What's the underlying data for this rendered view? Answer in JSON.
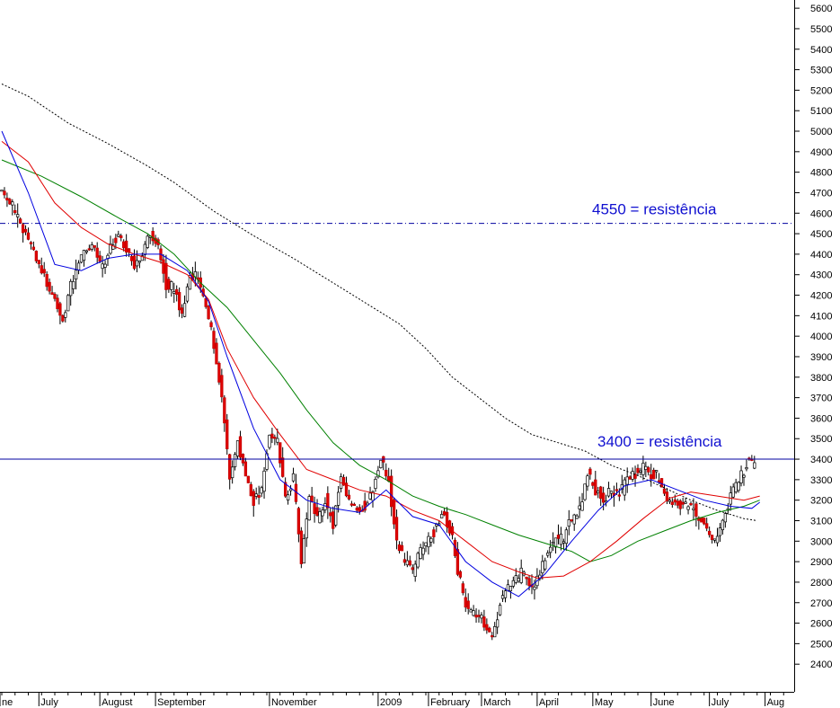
{
  "chart_data": {
    "type": "candlestick",
    "title": "",
    "xlabel": "",
    "ylabel": "",
    "ylim": [
      2265,
      5640
    ],
    "xlim": [
      0,
      299
    ],
    "y_ticks": [
      2400,
      2500,
      2600,
      2700,
      2800,
      2900,
      3000,
      3100,
      3200,
      3300,
      3400,
      3500,
      3600,
      3700,
      3800,
      3900,
      4000,
      4100,
      4200,
      4300,
      4400,
      4500,
      4600,
      4700,
      4800,
      4900,
      5000,
      5100,
      5200,
      5300,
      5400,
      5500,
      5600
    ],
    "month_labels": [
      {
        "label": "ne",
        "x": 0
      },
      {
        "label": "July",
        "x": 14
      },
      {
        "label": "August",
        "x": 37
      },
      {
        "label": "September",
        "x": 58
      },
      {
        "label": "November",
        "x": 101
      },
      {
        "label": "2009",
        "x": 142
      },
      {
        "label": "February",
        "x": 161
      },
      {
        "label": "March",
        "x": 181
      },
      {
        "label": "April",
        "x": 202
      },
      {
        "label": "May",
        "x": 223
      },
      {
        "label": "June",
        "x": 245
      },
      {
        "label": "July",
        "x": 267
      },
      {
        "label": "Aug",
        "x": 288
      }
    ],
    "annotations": [
      {
        "text": "4550 = resistência",
        "value": 4550
      },
      {
        "text": "3400 = resistência",
        "value": 3400
      }
    ],
    "price_anchors": [
      [
        0,
        4700
      ],
      [
        3,
        4660
      ],
      [
        6,
        4560
      ],
      [
        10,
        4480
      ],
      [
        13,
        4380
      ],
      [
        17,
        4260
      ],
      [
        20,
        4180
      ],
      [
        23,
        4080
      ],
      [
        26,
        4240
      ],
      [
        29,
        4350
      ],
      [
        32,
        4440
      ],
      [
        35,
        4420
      ],
      [
        38,
        4330
      ],
      [
        41,
        4440
      ],
      [
        44,
        4490
      ],
      [
        47,
        4430
      ],
      [
        50,
        4350
      ],
      [
        53,
        4400
      ],
      [
        56,
        4510
      ],
      [
        59,
        4440
      ],
      [
        62,
        4260
      ],
      [
        65,
        4230
      ],
      [
        68,
        4110
      ],
      [
        71,
        4300
      ],
      [
        74,
        4300
      ],
      [
        77,
        4140
      ],
      [
        80,
        3960
      ],
      [
        83,
        3700
      ],
      [
        86,
        3300
      ],
      [
        89,
        3500
      ],
      [
        92,
        3320
      ],
      [
        95,
        3200
      ],
      [
        98,
        3250
      ],
      [
        101,
        3530
      ],
      [
        104,
        3490
      ],
      [
        107,
        3200
      ],
      [
        110,
        3300
      ],
      [
        113,
        2900
      ],
      [
        116,
        3200
      ],
      [
        119,
        3100
      ],
      [
        122,
        3200
      ],
      [
        125,
        3080
      ],
      [
        128,
        3320
      ],
      [
        131,
        3200
      ],
      [
        134,
        3150
      ],
      [
        137,
        3170
      ],
      [
        140,
        3250
      ],
      [
        143,
        3400
      ],
      [
        146,
        3300
      ],
      [
        149,
        3000
      ],
      [
        152,
        2900
      ],
      [
        155,
        2850
      ],
      [
        158,
        2950
      ],
      [
        161,
        3000
      ],
      [
        164,
        3080
      ],
      [
        167,
        3150
      ],
      [
        170,
        3000
      ],
      [
        173,
        2800
      ],
      [
        176,
        2650
      ],
      [
        179,
        2660
      ],
      [
        182,
        2600
      ],
      [
        185,
        2520
      ],
      [
        188,
        2700
      ],
      [
        191,
        2780
      ],
      [
        194,
        2820
      ],
      [
        197,
        2850
      ],
      [
        200,
        2750
      ],
      [
        203,
        2850
      ],
      [
        206,
        2950
      ],
      [
        209,
        3000
      ],
      [
        212,
        3020
      ],
      [
        215,
        3100
      ],
      [
        218,
        3170
      ],
      [
        221,
        3320
      ],
      [
        224,
        3250
      ],
      [
        227,
        3200
      ],
      [
        230,
        3250
      ],
      [
        233,
        3230
      ],
      [
        236,
        3300
      ],
      [
        239,
        3330
      ],
      [
        242,
        3360
      ],
      [
        245,
        3330
      ],
      [
        248,
        3300
      ],
      [
        251,
        3200
      ],
      [
        254,
        3180
      ],
      [
        257,
        3180
      ],
      [
        260,
        3180
      ],
      [
        263,
        3120
      ],
      [
        266,
        3050
      ],
      [
        269,
        3000
      ],
      [
        272,
        3100
      ],
      [
        275,
        3220
      ],
      [
        278,
        3300
      ],
      [
        281,
        3380
      ],
      [
        284,
        3360
      ]
    ],
    "ma_dotted": [
      [
        0,
        5230
      ],
      [
        10,
        5170
      ],
      [
        25,
        5040
      ],
      [
        40,
        4940
      ],
      [
        55,
        4830
      ],
      [
        65,
        4750
      ],
      [
        80,
        4610
      ],
      [
        95,
        4490
      ],
      [
        110,
        4380
      ],
      [
        125,
        4260
      ],
      [
        140,
        4140
      ],
      [
        150,
        4060
      ],
      [
        160,
        3940
      ],
      [
        170,
        3800
      ],
      [
        180,
        3700
      ],
      [
        190,
        3600
      ],
      [
        200,
        3520
      ],
      [
        210,
        3480
      ],
      [
        220,
        3440
      ],
      [
        230,
        3370
      ],
      [
        240,
        3320
      ],
      [
        250,
        3260
      ],
      [
        260,
        3200
      ],
      [
        270,
        3150
      ],
      [
        280,
        3110
      ],
      [
        285,
        3100
      ]
    ],
    "ma_green": [
      [
        0,
        4860
      ],
      [
        15,
        4780
      ],
      [
        30,
        4680
      ],
      [
        45,
        4570
      ],
      [
        55,
        4500
      ],
      [
        65,
        4400
      ],
      [
        75,
        4260
      ],
      [
        85,
        4140
      ],
      [
        95,
        3980
      ],
      [
        105,
        3820
      ],
      [
        115,
        3640
      ],
      [
        125,
        3480
      ],
      [
        135,
        3370
      ],
      [
        145,
        3300
      ],
      [
        155,
        3220
      ],
      [
        165,
        3170
      ],
      [
        175,
        3130
      ],
      [
        185,
        3080
      ],
      [
        195,
        3030
      ],
      [
        205,
        2990
      ],
      [
        215,
        2950
      ],
      [
        222,
        2900
      ],
      [
        230,
        2930
      ],
      [
        240,
        3000
      ],
      [
        250,
        3050
      ],
      [
        260,
        3100
      ],
      [
        270,
        3140
      ],
      [
        280,
        3170
      ],
      [
        286,
        3200
      ]
    ],
    "ma_red": [
      [
        0,
        4950
      ],
      [
        10,
        4850
      ],
      [
        20,
        4650
      ],
      [
        30,
        4530
      ],
      [
        40,
        4450
      ],
      [
        50,
        4400
      ],
      [
        60,
        4360
      ],
      [
        70,
        4300
      ],
      [
        78,
        4180
      ],
      [
        85,
        3940
      ],
      [
        95,
        3700
      ],
      [
        105,
        3520
      ],
      [
        115,
        3350
      ],
      [
        125,
        3300
      ],
      [
        135,
        3250
      ],
      [
        145,
        3220
      ],
      [
        155,
        3150
      ],
      [
        165,
        3100
      ],
      [
        175,
        3000
      ],
      [
        185,
        2900
      ],
      [
        195,
        2850
      ],
      [
        202,
        2820
      ],
      [
        212,
        2830
      ],
      [
        222,
        2900
      ],
      [
        232,
        3000
      ],
      [
        242,
        3110
      ],
      [
        252,
        3210
      ],
      [
        260,
        3240
      ],
      [
        270,
        3220
      ],
      [
        280,
        3200
      ],
      [
        286,
        3220
      ]
    ],
    "ma_blue": [
      [
        0,
        5000
      ],
      [
        10,
        4700
      ],
      [
        20,
        4350
      ],
      [
        30,
        4320
      ],
      [
        40,
        4380
      ],
      [
        50,
        4400
      ],
      [
        60,
        4400
      ],
      [
        70,
        4320
      ],
      [
        78,
        4170
      ],
      [
        85,
        3900
      ],
      [
        95,
        3550
      ],
      [
        105,
        3300
      ],
      [
        115,
        3200
      ],
      [
        125,
        3160
      ],
      [
        135,
        3140
      ],
      [
        145,
        3250
      ],
      [
        155,
        3120
      ],
      [
        165,
        3080
      ],
      [
        175,
        2900
      ],
      [
        185,
        2800
      ],
      [
        195,
        2730
      ],
      [
        205,
        2840
      ],
      [
        215,
        3000
      ],
      [
        225,
        3150
      ],
      [
        235,
        3270
      ],
      [
        245,
        3300
      ],
      [
        255,
        3250
      ],
      [
        265,
        3200
      ],
      [
        275,
        3170
      ],
      [
        283,
        3160
      ],
      [
        286,
        3190
      ]
    ]
  }
}
